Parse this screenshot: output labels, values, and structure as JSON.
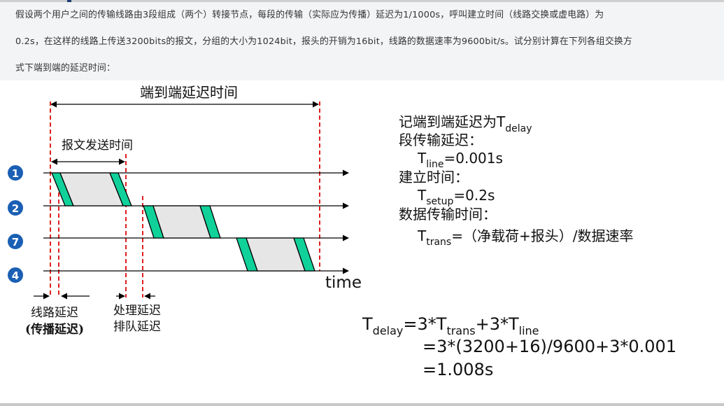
{
  "question": {
    "lines": [
      "假设两个用户之间的传输线路由3段组成（两个）转接节点，每段的传输（实际应为传播）延迟为1/1000s，呼叫建立时间（线路交换或虚电路）为",
      "0.2s，在这样的线路上传送3200bits的报文，分组的大小为1024bit，报头的开销为16bit，线路的数据速率为9600bit/s。试分别计算在下列各组交换方",
      "式下端到端的延迟时间："
    ]
  },
  "diagram": {
    "end_to_end_label": "端到端延迟时间",
    "message_send_label": "报文发送时间",
    "nodes": [
      "1",
      "2",
      "7",
      "4"
    ],
    "time_label": "time",
    "line_delay_label": "线路延迟",
    "propagation_label": "(传播延迟)",
    "processing_label": "处理延迟",
    "queuing_label": "排队延迟"
  },
  "explanation": {
    "delay_intro": "记端到端延迟为T",
    "delay_sub": "delay",
    "line_title": "段传输延迟：",
    "line_T": "T",
    "line_sub": "line",
    "line_val": "=0.001s",
    "setup_title": "建立时间：",
    "setup_T": "T",
    "setup_sub": "setup",
    "setup_val": "=0.2s",
    "trans_title": "数据传输时间：",
    "trans_T": "T",
    "trans_sub": "trans",
    "trans_val": "=（净载荷+报头）/数据速率"
  },
  "formula": {
    "T": "T",
    "delay_sub": "delay",
    "eq1": "=3*T",
    "trans_sub": "trans",
    "plus": "+3*T",
    "line_sub": "line",
    "line2": "=3*(3200+16)/9600+3*0.001",
    "line3": "=1.008s"
  },
  "colors": {
    "red_dash": "#e02020",
    "green_block": "#10d19a",
    "gray_block": "#e6e6e6",
    "node_blue": "#1a5fb4",
    "question_bg": "#f3f4f6"
  }
}
